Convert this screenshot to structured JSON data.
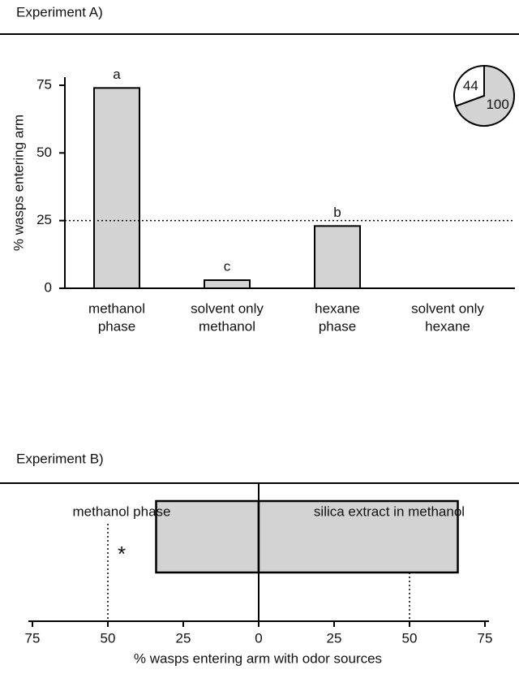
{
  "chart_data": [
    {
      "type": "bar",
      "title": "Experiment A)",
      "y_label": "% wasps entering arm",
      "categories": [
        [
          "methanol",
          "phase"
        ],
        [
          "solvent only",
          "methanol"
        ],
        [
          "hexane",
          "phase"
        ],
        [
          "solvent only",
          "hexane"
        ]
      ],
      "values": [
        74,
        3,
        23,
        0
      ],
      "annotations": [
        "a",
        "c",
        "b",
        null
      ],
      "color": "#d3d3d3",
      "ylim": [
        0,
        78
      ],
      "yticks": [
        0,
        25,
        50,
        75
      ],
      "reference_line": 25,
      "inset": {
        "type": "pie",
        "values": [
          44,
          100
        ],
        "colors": [
          "#ffffff",
          "#d3d3d3"
        ]
      }
    },
    {
      "type": "diverging_bar",
      "title": "Experiment B)",
      "x_label": "% wasps entering arm with odor sources",
      "categories": [
        "methanol phase",
        "silica extract in methanol"
      ],
      "values": [
        34,
        66
      ],
      "color": "#d3d3d3",
      "annotation": "*",
      "xlim": [
        -75,
        75
      ],
      "xticks": [
        {
          "value": -75,
          "label": "75"
        },
        {
          "value": -50,
          "label": "50"
        },
        {
          "value": -25,
          "label": "25"
        },
        0,
        25,
        50,
        75
      ],
      "reference_lines": [
        -50,
        50
      ]
    }
  ]
}
